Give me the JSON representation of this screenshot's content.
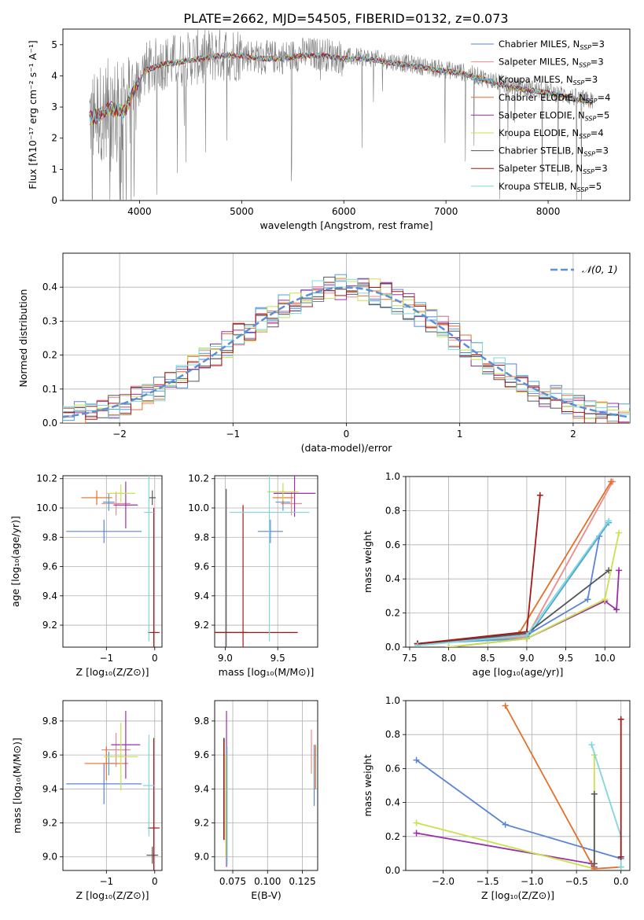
{
  "figure": {
    "title": "PLATE=2662, MJD=54505, FIBERID=0132, z=0.073"
  },
  "colors": {
    "Chabrier MILES": "#5a84d8",
    "Salpeter MILES": "#ee8a8a",
    "Kroupa MILES": "#4ea3d8",
    "Chabrier ELODIE": "#e46f2a",
    "Salpeter ELODIE": "#9a2fa8",
    "Kroupa ELODIE": "#c8e24a",
    "Chabrier STELIB": "#555555",
    "Salpeter STELIB": "#a51818",
    "Kroupa STELIB": "#7ed8da",
    "data": "#808080",
    "normal": "#5b8fd6"
  },
  "chart_data": [
    {
      "type": "line",
      "title": "PLATE=2662, MJD=54505, FIBERID=0132, z=0.073",
      "xlabel": "wavelength [Angstrom, rest frame]",
      "ylabel": "Flux [fλ10⁻¹⁷ erg cm⁻² s⁻¹ A⁻¹]",
      "xlim": [
        3250,
        8800
      ],
      "ylim": [
        0,
        5.5
      ],
      "xticks": [
        4000,
        5000,
        6000,
        7000,
        8000
      ],
      "yticks": [
        0,
        1,
        2,
        3,
        4,
        5
      ],
      "grid": false,
      "legend_position": "right",
      "legend": [
        {
          "name": "Chabrier MILES",
          "nssp": "3"
        },
        {
          "name": "Salpeter MILES",
          "nssp": "3"
        },
        {
          "name": "Kroupa MILES",
          "nssp": "3"
        },
        {
          "name": "Chabrier ELODIE",
          "nssp": "4"
        },
        {
          "name": "Salpeter ELODIE",
          "nssp": "5"
        },
        {
          "name": "Kroupa ELODIE",
          "nssp": "4"
        },
        {
          "name": "Chabrier STELIB",
          "nssp": "3"
        },
        {
          "name": "Salpeter STELIB",
          "nssp": "3"
        },
        {
          "name": "Kroupa STELIB",
          "nssp": "5"
        }
      ],
      "spectrum_x": [
        3550,
        3700,
        3850,
        3950,
        4050,
        4200,
        4400,
        4600,
        4800,
        5000,
        5200,
        5400,
        5600,
        5800,
        6000,
        6200,
        6400,
        6600,
        6800,
        7000,
        7200,
        7400,
        7600,
        7800,
        8000,
        8200,
        8400
      ],
      "spectrum_y": [
        2.7,
        3.0,
        2.9,
        3.6,
        4.2,
        4.4,
        4.5,
        4.6,
        4.7,
        4.7,
        4.6,
        4.6,
        4.7,
        4.7,
        4.6,
        4.6,
        4.5,
        4.4,
        4.3,
        4.2,
        4.1,
        3.9,
        3.7,
        3.6,
        3.5,
        3.35,
        3.2
      ]
    },
    {
      "type": "line",
      "xlabel": "(data-model)/error",
      "ylabel": "Normed distribution",
      "xlim": [
        -2.5,
        2.5
      ],
      "ylim": [
        0,
        0.5
      ],
      "xticks": [
        -2,
        -1,
        0,
        1,
        2
      ],
      "yticks": [
        0.0,
        0.1,
        0.2,
        0.3,
        0.4
      ],
      "grid": true,
      "legend_position": "top-right",
      "legend_label": "𝒩(0, 1)",
      "normal": {
        "mean": 0,
        "sigma": 1
      }
    },
    {
      "type": "scatter",
      "xlabel": "Z [log₁₀(Z/Z⊙)]",
      "ylabel": "age  [log₁₀(age/yr)]",
      "xlim": [
        -1.9,
        0.15
      ],
      "ylim": [
        9.05,
        10.22
      ],
      "xticks": [
        -1,
        0
      ],
      "yticks": [
        9.2,
        9.4,
        9.6,
        9.8,
        10.0,
        10.2
      ],
      "grid": true,
      "points": [
        {
          "model": "Chabrier MILES",
          "x": -1.05,
          "xerr": 0.78,
          "y": 9.84,
          "yerr": 0.08
        },
        {
          "model": "Salpeter MILES",
          "x": -0.8,
          "xerr": 0.3,
          "y": 10.03,
          "yerr": 0.08
        },
        {
          "model": "Kroupa MILES",
          "x": -0.95,
          "xerr": 0.12,
          "y": 10.04,
          "yerr": 0.06
        },
        {
          "model": "Chabrier ELODIE",
          "x": -1.2,
          "xerr": 0.32,
          "y": 10.07,
          "yerr": 0.05
        },
        {
          "model": "Salpeter ELODIE",
          "x": -0.6,
          "xerr": 0.25,
          "y": 10.02,
          "yerr": 0.16
        },
        {
          "model": "Kroupa ELODIE",
          "x": -0.7,
          "xerr": 0.3,
          "y": 10.1,
          "yerr": 0.06
        },
        {
          "model": "Chabrier STELIB",
          "x": -0.05,
          "xerr": 0.07,
          "y": 10.07,
          "yerr": 0.05
        },
        {
          "model": "Salpeter STELIB",
          "x": -0.02,
          "xerr": 0.12,
          "y": 9.15,
          "yerr": 0.85
        },
        {
          "model": "Kroupa STELIB",
          "x": -0.12,
          "xerr": 0.1,
          "y": 9.97,
          "yerr": 0.88
        }
      ]
    },
    {
      "type": "scatter",
      "xlabel": "mass [log₁₀(M/M⊙)]",
      "ylabel": "",
      "xlim": [
        8.9,
        9.88
      ],
      "ylim": [
        9.05,
        10.22
      ],
      "xticks": [
        9.0,
        9.5
      ],
      "yticks": [
        9.2,
        9.4,
        9.6,
        9.8,
        10.0,
        10.2
      ],
      "grid": true,
      "points": [
        {
          "model": "Chabrier MILES",
          "x": 9.43,
          "xerr": 0.12,
          "y": 9.84,
          "yerr": 0.08
        },
        {
          "model": "Salpeter MILES",
          "x": 9.63,
          "xerr": 0.1,
          "y": 10.03,
          "yerr": 0.08
        },
        {
          "model": "Kroupa MILES",
          "x": 9.55,
          "xerr": 0.07,
          "y": 10.04,
          "yerr": 0.06
        },
        {
          "model": "Chabrier ELODIE",
          "x": 9.55,
          "xerr": 0.1,
          "y": 10.07,
          "yerr": 0.05
        },
        {
          "model": "Salpeter ELODIE",
          "x": 9.66,
          "xerr": 0.2,
          "y": 10.1,
          "yerr": 0.16
        },
        {
          "model": "Kroupa ELODIE",
          "x": 9.55,
          "xerr": 0.15,
          "y": 10.11,
          "yerr": 0.06
        },
        {
          "model": "Chabrier STELIB",
          "x": 9.01,
          "xerr": 0.2,
          "y": 9.15,
          "yerr": 0.98
        },
        {
          "model": "Salpeter STELIB",
          "x": 9.17,
          "xerr": 0.52,
          "y": 9.15,
          "yerr": 0.87
        },
        {
          "model": "Kroupa STELIB",
          "x": 9.42,
          "xerr": 0.38,
          "y": 9.97,
          "yerr": 0.88
        }
      ]
    },
    {
      "type": "line",
      "xlabel": "age  [log₁₀(age/yr)]",
      "ylabel": "mass weight",
      "xlim": [
        7.45,
        10.32
      ],
      "ylim": [
        0,
        1.0
      ],
      "xticks": [
        7.5,
        8.0,
        8.5,
        9.0,
        9.5,
        10.0
      ],
      "yticks": [
        0.0,
        0.2,
        0.4,
        0.6,
        0.8,
        1.0
      ],
      "grid": true,
      "series": [
        {
          "model": "Chabrier MILES",
          "x": [
            7.6,
            9.0,
            9.78,
            9.93
          ],
          "y": [
            0.02,
            0.07,
            0.28,
            0.65
          ]
        },
        {
          "model": "Salpeter MILES",
          "x": [
            7.6,
            9.0,
            10.1
          ],
          "y": [
            0.02,
            0.06,
            0.97
          ]
        },
        {
          "model": "Kroupa MILES",
          "x": [
            7.6,
            9.0,
            10.05
          ],
          "y": [
            0.02,
            0.05,
            0.73
          ]
        },
        {
          "model": "Chabrier ELODIE",
          "x": [
            7.6,
            8.9,
            10.08
          ],
          "y": [
            0.02,
            0.08,
            0.97
          ]
        },
        {
          "model": "Salpeter ELODIE",
          "x": [
            8.0,
            9.0,
            10.0,
            10.15,
            10.18
          ],
          "y": [
            0.0,
            0.05,
            0.27,
            0.22,
            0.45
          ]
        },
        {
          "model": "Kroupa ELODIE",
          "x": [
            8.0,
            9.0,
            10.0,
            10.18
          ],
          "y": [
            0.0,
            0.05,
            0.28,
            0.67
          ]
        },
        {
          "model": "Chabrier STELIB",
          "x": [
            7.6,
            9.0,
            10.05
          ],
          "y": [
            0.02,
            0.08,
            0.45
          ]
        },
        {
          "model": "Salpeter STELIB",
          "x": [
            7.6,
            9.0,
            9.17
          ],
          "y": [
            0.02,
            0.09,
            0.89
          ]
        },
        {
          "model": "Kroupa STELIB",
          "x": [
            7.6,
            9.0,
            10.05
          ],
          "y": [
            0.01,
            0.07,
            0.74
          ]
        }
      ]
    },
    {
      "type": "scatter",
      "xlabel": "Z [log₁₀(Z/Z⊙)]",
      "ylabel": "mass [log₁₀(M/M⊙)]",
      "xlim": [
        -1.9,
        0.15
      ],
      "ylim": [
        8.92,
        9.92
      ],
      "xticks": [
        -1,
        0
      ],
      "yticks": [
        9.0,
        9.2,
        9.4,
        9.6,
        9.8
      ],
      "grid": true,
      "points": [
        {
          "model": "Chabrier MILES",
          "x": -1.05,
          "xerr": 0.78,
          "y": 9.43,
          "yerr": 0.12
        },
        {
          "model": "Salpeter MILES",
          "x": -0.8,
          "xerr": 0.3,
          "y": 9.63,
          "yerr": 0.1
        },
        {
          "model": "Kroupa MILES",
          "x": -0.95,
          "xerr": 0.12,
          "y": 9.55,
          "yerr": 0.07
        },
        {
          "model": "Chabrier ELODIE",
          "x": -1.0,
          "xerr": 0.45,
          "y": 9.55,
          "yerr": 0.1
        },
        {
          "model": "Salpeter ELODIE",
          "x": -0.6,
          "xerr": 0.3,
          "y": 9.66,
          "yerr": 0.2
        },
        {
          "model": "Kroupa ELODIE",
          "x": -0.7,
          "xerr": 0.35,
          "y": 9.59,
          "yerr": 0.2
        },
        {
          "model": "Chabrier STELIB",
          "x": -0.05,
          "xerr": 0.12,
          "y": 9.01,
          "yerr": 0.05
        },
        {
          "model": "Salpeter STELIB",
          "x": -0.02,
          "xerr": 0.12,
          "y": 9.17,
          "yerr": 0.53
        },
        {
          "model": "Kroupa STELIB",
          "x": -0.12,
          "xerr": 0.12,
          "y": 9.42,
          "yerr": 0.3
        }
      ]
    },
    {
      "type": "scatter",
      "xlabel": "E(B-V)",
      "ylabel": "",
      "xlim": [
        0.062,
        0.136
      ],
      "ylim": [
        8.92,
        9.92
      ],
      "xticks": [
        0.075,
        0.1,
        0.125
      ],
      "xtick_labels": [
        "0.075",
        "0.100",
        "0.125"
      ],
      "yticks": [
        9.0,
        9.2,
        9.4,
        9.6,
        9.8
      ],
      "grid": true,
      "points": [
        {
          "model": "Chabrier STELIB",
          "x": 0.0685,
          "y": 9.4,
          "yerr": 0.3
        },
        {
          "model": "Salpeter STELIB",
          "x": 0.0688,
          "y": 9.4,
          "yerr": 0.3
        },
        {
          "model": "Salpeter ELODIE",
          "x": 0.0705,
          "y": 9.4,
          "yerr": 0.46
        },
        {
          "model": "Kroupa STELIB",
          "x": 0.071,
          "y": 9.3,
          "yerr": 0.35
        },
        {
          "model": "Kroupa ELODIE",
          "x": 0.07,
          "y": 9.3,
          "yerr": 0.3
        },
        {
          "model": "Salpeter MILES",
          "x": 0.1315,
          "y": 9.62,
          "yerr": 0.13
        },
        {
          "model": "Chabrier MILES",
          "x": 0.1335,
          "y": 9.48,
          "yerr": 0.18
        },
        {
          "model": "Chabrier ELODIE",
          "x": 0.1345,
          "y": 9.53,
          "yerr": 0.13
        }
      ]
    },
    {
      "type": "line",
      "xlabel": "Z [log₁₀(Z/Z⊙)]",
      "ylabel": "mass weight",
      "xlim": [
        -2.42,
        0.1
      ],
      "ylim": [
        0,
        1.0
      ],
      "xticks": [
        -2.0,
        -1.5,
        -1.0,
        -0.5,
        0.0
      ],
      "yticks": [
        0.0,
        0.2,
        0.4,
        0.6,
        0.8,
        1.0
      ],
      "grid": true,
      "series": [
        {
          "model": "Chabrier MILES",
          "x": [
            -2.3,
            -1.3,
            0.0
          ],
          "y": [
            0.65,
            0.27,
            0.07
          ]
        },
        {
          "model": "Salpeter ELODIE",
          "x": [
            -2.3,
            -0.33,
            -0.3
          ],
          "y": [
            0.22,
            0.04,
            0.02
          ]
        },
        {
          "model": "Kroupa ELODIE",
          "x": [
            -2.3,
            -0.3,
            -0.3
          ],
          "y": [
            0.28,
            0.01,
            0.68
          ]
        },
        {
          "model": "Chabrier ELODIE",
          "x": [
            -1.3,
            -0.3,
            0.0
          ],
          "y": [
            0.97,
            0.01,
            0.02
          ]
        },
        {
          "model": "Chabrier STELIB",
          "x": [
            -0.3,
            -0.3
          ],
          "y": [
            0.04,
            0.45
          ]
        },
        {
          "model": "Kroupa STELIB",
          "x": [
            -0.33,
            0.0,
            0.0
          ],
          "y": [
            0.74,
            0.2,
            0.02
          ]
        },
        {
          "model": "Salpeter STELIB",
          "x": [
            0.0,
            0.0
          ],
          "y": [
            0.08,
            0.89
          ]
        }
      ]
    }
  ]
}
